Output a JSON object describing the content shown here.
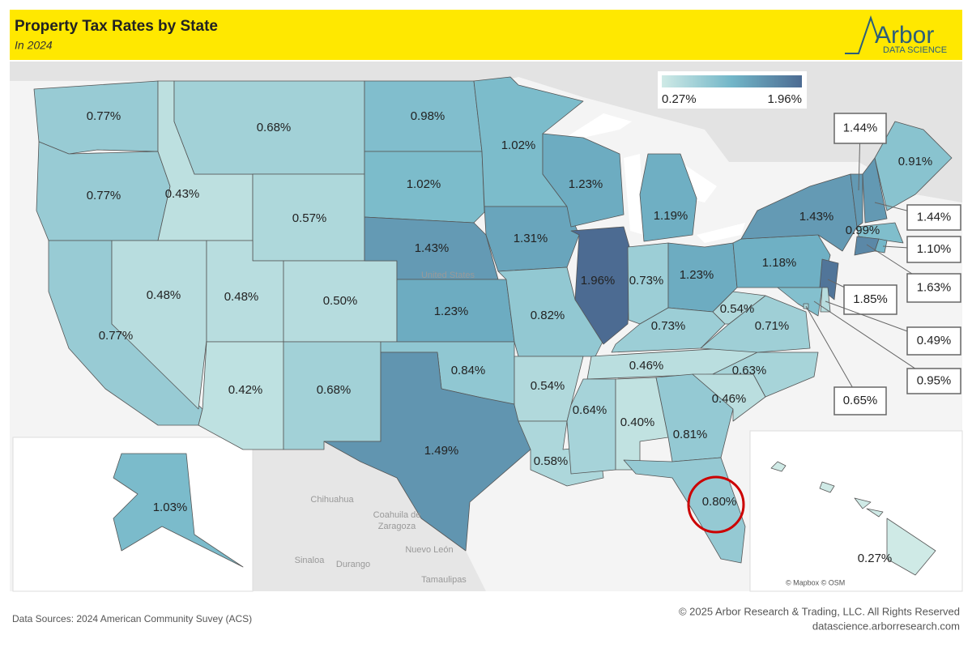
{
  "header": {
    "title": "Property Tax Rates by State",
    "subtitle": "In 2024",
    "logo": "Arbor",
    "logo_sub": "DATA SCIENCE"
  },
  "legend": {
    "min": {
      "value": 0.27,
      "label": "0.27%"
    },
    "max": {
      "value": 1.96,
      "label": "1.96%"
    }
  },
  "states": [
    {
      "value": 0.77,
      "label": "0.77%"
    },
    {
      "value": 0.77,
      "label": "0.77%"
    },
    {
      "value": 0.77,
      "label": "0.77%"
    },
    {
      "value": 0.43,
      "label": "0.43%"
    },
    {
      "value": 0.48,
      "label": "0.48%"
    },
    {
      "value": 0.68,
      "label": "0.68%"
    },
    {
      "value": 0.57,
      "label": "0.57%"
    },
    {
      "value": 0.48,
      "label": "0.48%"
    },
    {
      "value": 0.5,
      "label": "0.50%"
    },
    {
      "value": 0.42,
      "label": "0.42%"
    },
    {
      "value": 0.68,
      "label": "0.68%"
    },
    {
      "value": 0.98,
      "label": "0.98%"
    },
    {
      "value": 1.02,
      "label": "1.02%"
    },
    {
      "value": 1.43,
      "label": "1.43%"
    },
    {
      "value": 1.23,
      "label": "1.23%"
    },
    {
      "value": 0.84,
      "label": "0.84%"
    },
    {
      "value": 1.49,
      "label": "1.49%"
    },
    {
      "value": 1.02,
      "label": "1.02%"
    },
    {
      "value": 1.31,
      "label": "1.31%"
    },
    {
      "value": 0.82,
      "label": "0.82%"
    },
    {
      "value": 0.54,
      "label": "0.54%"
    },
    {
      "value": 0.58,
      "label": "0.58%"
    },
    {
      "value": 1.23,
      "label": "1.23%"
    },
    {
      "value": 1.96,
      "label": "1.96%"
    },
    {
      "value": 1.19,
      "label": "1.19%"
    },
    {
      "value": 0.73,
      "label": "0.73%"
    },
    {
      "value": 1.23,
      "label": "1.23%"
    },
    {
      "value": 0.73,
      "label": "0.73%"
    },
    {
      "value": 0.46,
      "label": "0.46%"
    },
    {
      "value": 0.64,
      "label": "0.64%"
    },
    {
      "value": 0.4,
      "label": "0.40%"
    },
    {
      "value": 0.81,
      "label": "0.81%"
    },
    {
      "value": 0.8,
      "label": "0.80%"
    },
    {
      "value": 0.46,
      "label": "0.46%"
    },
    {
      "value": 0.63,
      "label": "0.63%"
    },
    {
      "value": 0.71,
      "label": "0.71%"
    },
    {
      "value": 0.54,
      "label": "0.54%"
    },
    {
      "value": 1.18,
      "label": "1.18%"
    },
    {
      "value": 1.43,
      "label": "1.43%"
    },
    {
      "value": 0.91,
      "label": "0.91%"
    },
    {
      "value": 0.99,
      "label": "0.99%"
    },
    {
      "value": 1.03,
      "label": "1.03%"
    },
    {
      "value": 0.27,
      "label": "0.27%"
    },
    {
      "value": 1.85,
      "label": "1.85%"
    },
    {
      "value": 1.44,
      "label": "1.44%"
    },
    {
      "value": 1.44,
      "label": "1.44%"
    },
    {
      "value": 1.63,
      "label": "1.63%"
    },
    {
      "value": 1.1,
      "label": "1.10%"
    },
    {
      "value": 0.95,
      "label": "0.95%"
    },
    {
      "value": 0.49,
      "label": "0.49%"
    },
    {
      "value": 0.65,
      "label": "0.65%"
    }
  ],
  "basemap_labels": [
    "United States",
    "Chihuahua",
    "Coahuila de",
    "Zaragoza",
    "Sinaloa",
    "Durango",
    "Nuevo León",
    "Tamaulipas"
  ],
  "attribution": "© Mapbox © OSM",
  "footer": {
    "source": "Data Sources: 2024 American Community Suvey (ACS)",
    "copyright": "© 2025 Arbor Research & Trading, LLC. All Rights Reserved",
    "url": "datascience.arborresearch.com"
  }
}
